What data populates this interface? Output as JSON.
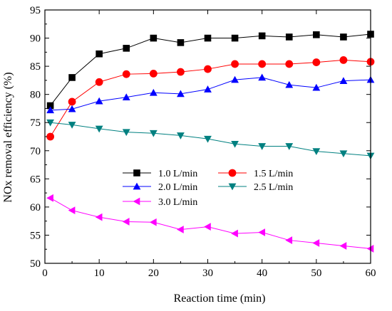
{
  "chart_data": {
    "type": "line",
    "xlabel": "Reaction time (min)",
    "ylabel": "NOx removal efficiency (%)",
    "xlim": [
      0,
      60
    ],
    "ylim": [
      50,
      95
    ],
    "x_ticks": [
      0,
      10,
      20,
      30,
      40,
      50,
      60
    ],
    "y_ticks": [
      50,
      55,
      60,
      65,
      70,
      75,
      80,
      85,
      90,
      95
    ],
    "grid": false,
    "legend_position": "center-left",
    "x": [
      1,
      5,
      10,
      15,
      20,
      25,
      30,
      35,
      40,
      45,
      50,
      55,
      60
    ],
    "series": [
      {
        "name": "1.0 L/min",
        "color": "#000000",
        "marker": "square",
        "values": [
          78.0,
          83.0,
          87.2,
          88.2,
          90.0,
          89.2,
          90.0,
          90.0,
          90.4,
          90.2,
          90.6,
          90.2,
          90.7
        ]
      },
      {
        "name": "1.5 L/min",
        "color": "#ff0000",
        "marker": "circle",
        "values": [
          72.5,
          78.7,
          82.2,
          83.6,
          83.7,
          84.0,
          84.5,
          85.4,
          85.4,
          85.4,
          85.7,
          86.1,
          85.8
        ]
      },
      {
        "name": "2.0 L/min",
        "color": "#0000ff",
        "marker": "triangle-up",
        "values": [
          77.2,
          77.4,
          78.8,
          79.5,
          80.3,
          80.1,
          80.9,
          82.6,
          83.0,
          81.7,
          81.2,
          82.4,
          82.6
        ]
      },
      {
        "name": "2.5 L/min",
        "color": "#008080",
        "marker": "triangle-down",
        "values": [
          75.0,
          74.6,
          73.9,
          73.3,
          73.1,
          72.7,
          72.1,
          71.2,
          70.8,
          70.8,
          69.9,
          69.5,
          69.1
        ]
      },
      {
        "name": "3.0 L/min",
        "color": "#ff00ff",
        "marker": "triangle-left",
        "values": [
          61.6,
          59.4,
          58.2,
          57.4,
          57.3,
          56.0,
          56.5,
          55.3,
          55.5,
          54.1,
          53.6,
          53.1,
          52.6
        ]
      }
    ]
  }
}
